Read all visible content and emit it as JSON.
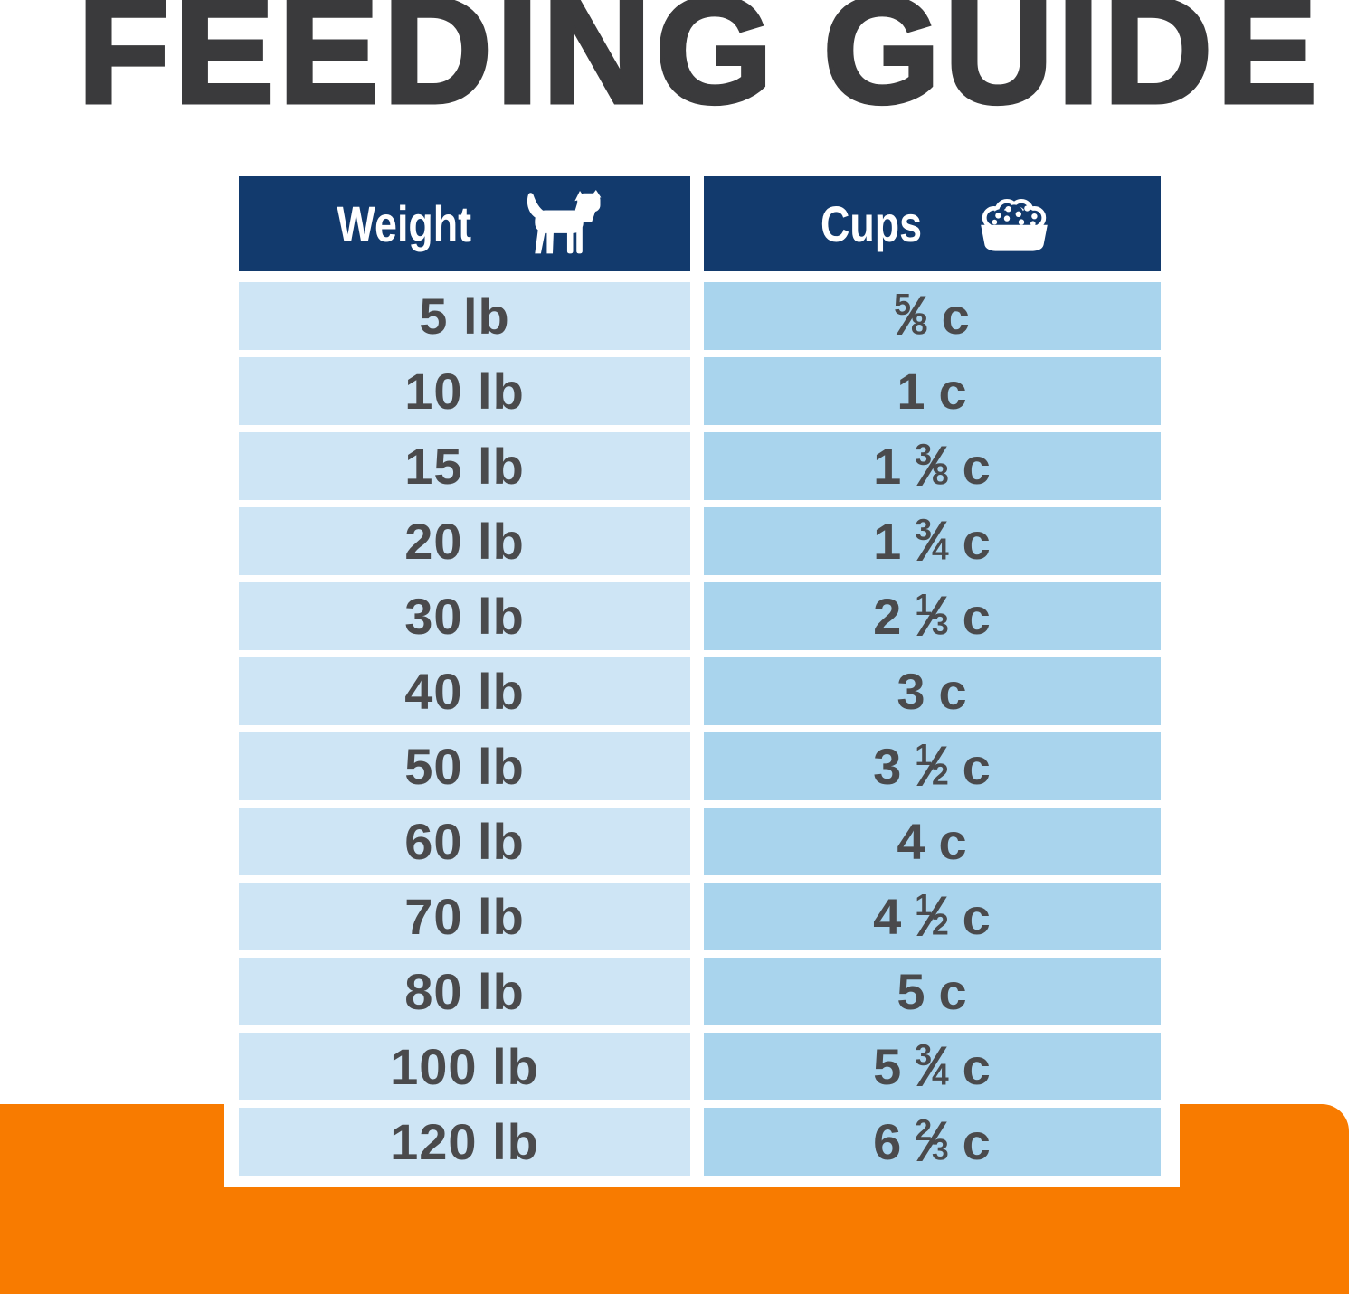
{
  "title": "FEEDING GUIDE",
  "table": {
    "columns": [
      {
        "label": "Weight",
        "icon": "dog-icon"
      },
      {
        "label": "Cups",
        "icon": "kibble-bowl-icon"
      }
    ],
    "rows": [
      {
        "weight": "5 lb",
        "cups": {
          "whole": "",
          "num": "5",
          "den": "8",
          "unit": "c"
        }
      },
      {
        "weight": "10 lb",
        "cups": {
          "whole": "1",
          "num": "",
          "den": "",
          "unit": "c"
        }
      },
      {
        "weight": "15 lb",
        "cups": {
          "whole": "1",
          "num": "3",
          "den": "8",
          "unit": "c"
        }
      },
      {
        "weight": "20 lb",
        "cups": {
          "whole": "1",
          "num": "3",
          "den": "4",
          "unit": "c"
        }
      },
      {
        "weight": "30 lb",
        "cups": {
          "whole": "2",
          "num": "1",
          "den": "3",
          "unit": "c"
        }
      },
      {
        "weight": "40 lb",
        "cups": {
          "whole": "3",
          "num": "",
          "den": "",
          "unit": "c"
        }
      },
      {
        "weight": "50 lb",
        "cups": {
          "whole": "3",
          "num": "1",
          "den": "2",
          "unit": "c"
        }
      },
      {
        "weight": "60 lb",
        "cups": {
          "whole": "4",
          "num": "",
          "den": "",
          "unit": "c"
        }
      },
      {
        "weight": "70 lb",
        "cups": {
          "whole": "4",
          "num": "1",
          "den": "2",
          "unit": "c"
        }
      },
      {
        "weight": "80 lb",
        "cups": {
          "whole": "5",
          "num": "",
          "den": "",
          "unit": "c"
        }
      },
      {
        "weight": "100 lb",
        "cups": {
          "whole": "5",
          "num": "3",
          "den": "4",
          "unit": "c"
        }
      },
      {
        "weight": "120 lb",
        "cups": {
          "whole": "6",
          "num": "2",
          "den": "3",
          "unit": "c"
        }
      }
    ]
  },
  "colors": {
    "header_navy": "#123a6d",
    "weight_cell_blue": "#cee5f5",
    "cups_cell_blue": "#a9d4ed",
    "cell_text_gray": "#4a4a4c",
    "title_charcoal": "#3a3a3c",
    "accent_orange": "#f87b00",
    "icon_white": "#ffffff"
  },
  "chart_data": {
    "type": "table",
    "title": "FEEDING GUIDE",
    "columns": [
      "Weight",
      "Cups"
    ],
    "rows": [
      [
        "5 lb",
        "5/8 c"
      ],
      [
        "10 lb",
        "1 c"
      ],
      [
        "15 lb",
        "1 3/8 c"
      ],
      [
        "20 lb",
        "1 3/4 c"
      ],
      [
        "30 lb",
        "2 1/3 c"
      ],
      [
        "40 lb",
        "3 c"
      ],
      [
        "50 lb",
        "3 1/2 c"
      ],
      [
        "60 lb",
        "4 c"
      ],
      [
        "70 lb",
        "4 1/2 c"
      ],
      [
        "80 lb",
        "5 c"
      ],
      [
        "100 lb",
        "5 3/4 c"
      ],
      [
        "120 lb",
        "6 2/3 c"
      ]
    ],
    "layout": {
      "header_style": "navy with white text and icons",
      "row_style": "alternating column tints, white gaps",
      "legend": "none",
      "grid": "off"
    }
  }
}
